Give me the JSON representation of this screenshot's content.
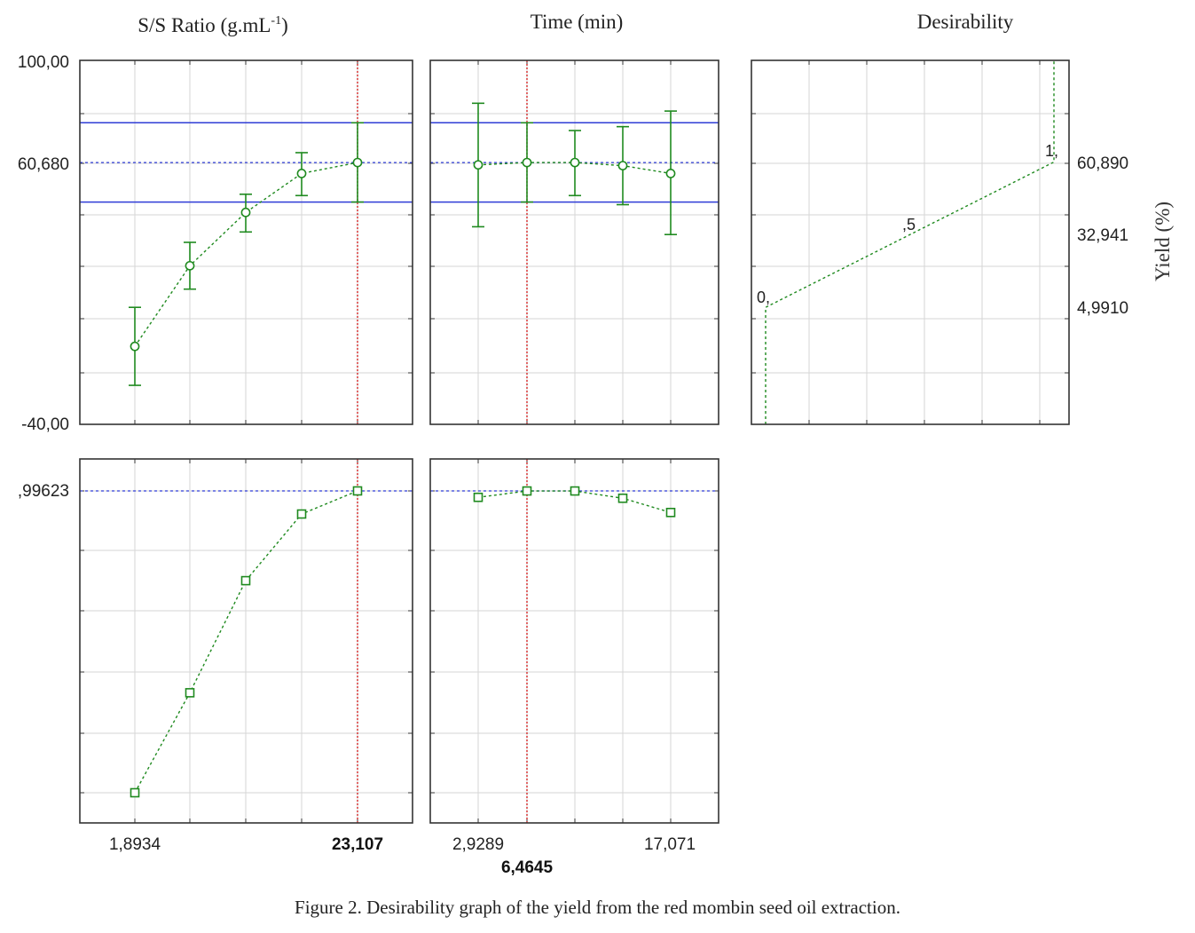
{
  "figure": {
    "caption_figure_word": "Figure 2.",
    "caption_text": "Desirability graph of the yield from the red mombin seed oil extraction."
  },
  "colors": {
    "data": "#1f8a1f",
    "current": "#d62828",
    "bounds": "#2f3cd6",
    "grid": "#d6d6d6",
    "frame": "#333333"
  },
  "chart_data": [
    {
      "type": "line",
      "panel": "yield-vs-ss-ratio",
      "title": "S/S Ratio (g.mL",
      "title_sup": "-1",
      "title_tail": ")",
      "ylim": [
        -40,
        100
      ],
      "yticks_labeled": [
        "100,00",
        "60,680",
        "-40,00"
      ],
      "xticks_labeled": [
        "1,8934",
        "23,107"
      ],
      "current_x": 23.107,
      "current_y": 60.68,
      "band": [
        45.5,
        76.0
      ],
      "series": [
        {
          "x": [
            1.8934,
            7.2,
            12.5,
            17.8,
            23.107
          ],
          "y": [
            -10.0,
            21.0,
            41.5,
            56.5,
            60.7
          ],
          "lower": [
            -25.0,
            12.0,
            34.0,
            48.0,
            45.5
          ],
          "upper": [
            5.0,
            30.0,
            48.5,
            64.5,
            76.0
          ]
        }
      ]
    },
    {
      "type": "line",
      "panel": "yield-vs-time",
      "title": "Time (min)",
      "ylim": [
        -40,
        100
      ],
      "xticks_labeled": [
        "2,9289",
        "17,071"
      ],
      "current_x": 6.4645,
      "current_label": "6,4645",
      "band": [
        45.5,
        76.0
      ],
      "series": [
        {
          "x": [
            2.9289,
            6.4645,
            10.0,
            13.5355,
            17.071
          ],
          "y": [
            59.8,
            60.7,
            60.7,
            59.5,
            56.5
          ],
          "lower": [
            36.0,
            45.5,
            48.0,
            44.5,
            33.0
          ],
          "upper": [
            83.5,
            76.0,
            73.0,
            74.5,
            80.5
          ]
        }
      ]
    },
    {
      "type": "line",
      "panel": "desirability-function",
      "title": "Desirability",
      "ylabel": "Yield (%)",
      "ylim": [
        -40,
        100
      ],
      "right_ticks": [
        "60,890",
        "32,941",
        "4,9910"
      ],
      "point_labels": [
        "0,",
        ",5",
        "1,"
      ],
      "series": [
        {
          "x": [
            0,
            0,
            0.5,
            1,
            1
          ],
          "y": [
            -40,
            4.991,
            32.941,
            60.89,
            100
          ]
        }
      ]
    },
    {
      "type": "line",
      "panel": "desirability-vs-ss-ratio",
      "yticks_labeled": [
        ",99623"
      ],
      "current_x": 23.107,
      "current_y": 0.99623,
      "series": [
        {
          "x": [
            1.8934,
            7.2,
            12.5,
            17.8,
            23.107
          ],
          "y": [
            0.0,
            0.33,
            0.7,
            0.92,
            0.99623
          ]
        }
      ]
    },
    {
      "type": "line",
      "panel": "desirability-vs-time",
      "current_x": 6.4645,
      "series": [
        {
          "x": [
            2.9289,
            6.4645,
            10.0,
            13.5355,
            17.071
          ],
          "y": [
            0.975,
            0.996,
            0.996,
            0.972,
            0.925
          ]
        }
      ]
    }
  ]
}
